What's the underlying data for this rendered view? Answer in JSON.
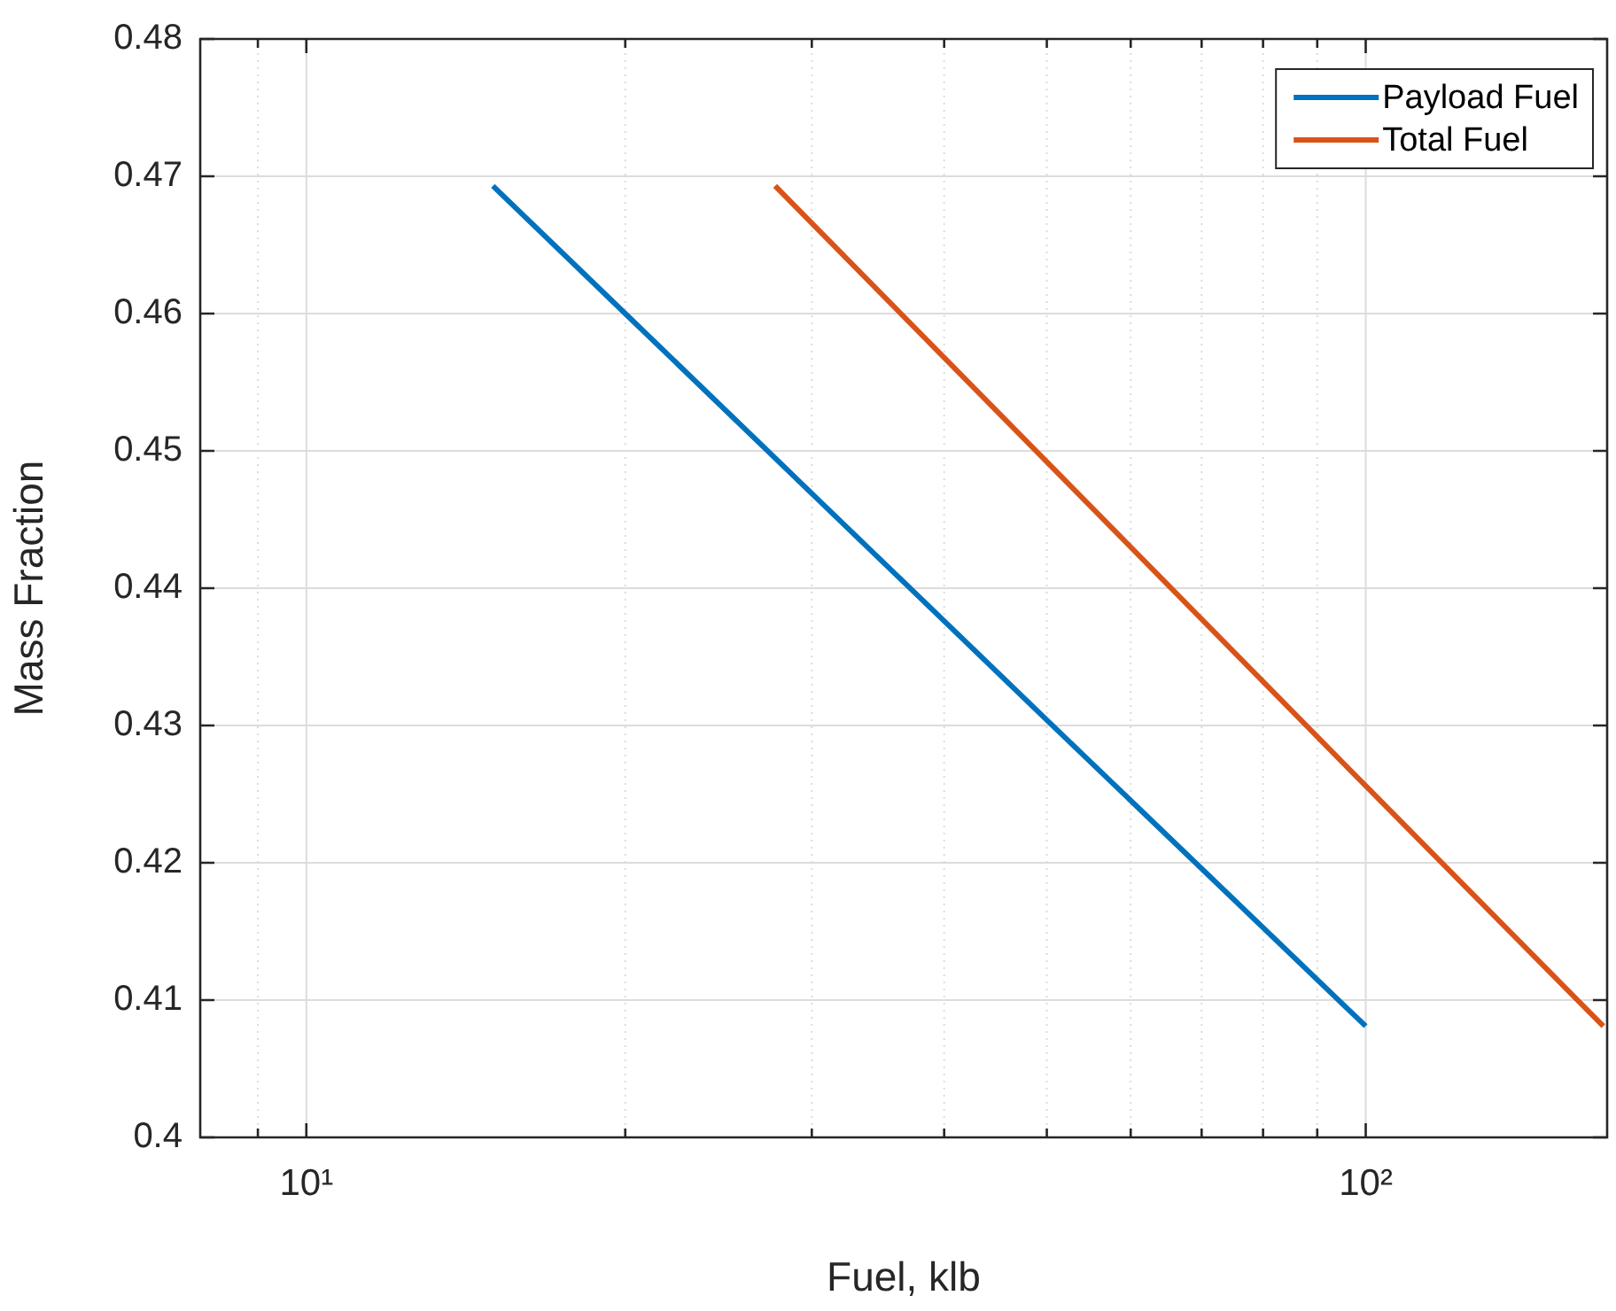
{
  "chart_data": {
    "type": "line",
    "xlabel": "Fuel, klb",
    "ylabel": "Mass Fraction",
    "log": "x",
    "grid": true,
    "legend": "top right",
    "line_style": "solid",
    "marker": "none",
    "xlim": [
      7.94,
      169
    ],
    "ylim": [
      0.4,
      0.48
    ],
    "xticks": [
      {
        "value": 9,
        "label": null
      },
      {
        "value": 10,
        "label": "10¹"
      },
      {
        "value": 20,
        "label": null
      },
      {
        "value": 30,
        "label": null
      },
      {
        "value": 40,
        "label": null
      },
      {
        "value": 50,
        "label": null
      },
      {
        "value": 60,
        "label": null
      },
      {
        "value": 70,
        "label": null
      },
      {
        "value": 80,
        "label": null
      },
      {
        "value": 90,
        "label": null
      },
      {
        "value": 100,
        "label": "10²"
      }
    ],
    "yticks": [
      0.4,
      0.41,
      0.42,
      0.43,
      0.44,
      0.45,
      0.46,
      0.47,
      0.48
    ],
    "series": [
      {
        "name": "Payload Fuel",
        "color": "#0072bd",
        "x": [
          15,
          20,
          30,
          50,
          100
        ],
        "values": [
          0.4693,
          0.46,
          0.4469,
          0.4304,
          0.4081
        ]
      },
      {
        "name": "Total Fuel",
        "color": "#d95319",
        "x": [
          27.7,
          50,
          100,
          167.6
        ],
        "values": [
          0.4693,
          0.4492,
          0.4256,
          0.4081
        ]
      }
    ]
  }
}
